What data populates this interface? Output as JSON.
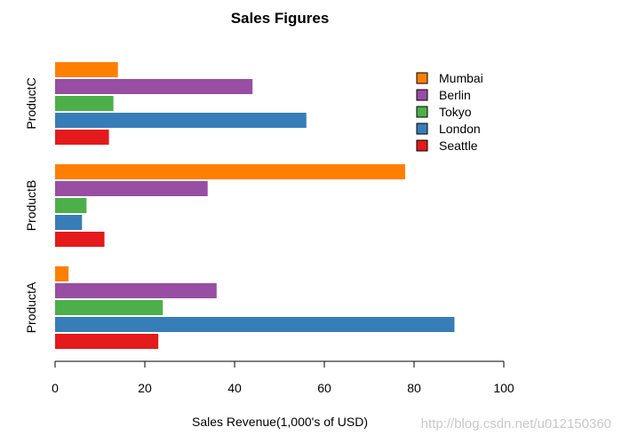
{
  "chart_data": {
    "type": "bar",
    "orientation": "horizontal",
    "title": "Sales Figures",
    "xlabel": "Sales Revenue(1,000's of USD)",
    "ylabel": "",
    "xlim": [
      0,
      100
    ],
    "xticks": [
      0,
      20,
      40,
      60,
      80,
      100
    ],
    "categories": [
      "ProductA",
      "ProductB",
      "ProductC"
    ],
    "series": [
      {
        "name": "Seattle",
        "color": "#e41a1c",
        "values": [
          23,
          11,
          12
        ]
      },
      {
        "name": "London",
        "color": "#377eb8",
        "values": [
          89,
          6,
          56
        ]
      },
      {
        "name": "Tokyo",
        "color": "#4daf4a",
        "values": [
          24,
          7,
          13
        ]
      },
      {
        "name": "Berlin",
        "color": "#984ea3",
        "values": [
          36,
          34,
          44
        ]
      },
      {
        "name": "Mumbai",
        "color": "#ff7f00",
        "values": [
          3,
          78,
          14
        ]
      }
    ],
    "legend": {
      "position": "top-right",
      "order": [
        "Mumbai",
        "Berlin",
        "Tokyo",
        "London",
        "Seattle"
      ]
    },
    "grid": false
  },
  "watermark": "http://blog.csdn.net/u012150360"
}
